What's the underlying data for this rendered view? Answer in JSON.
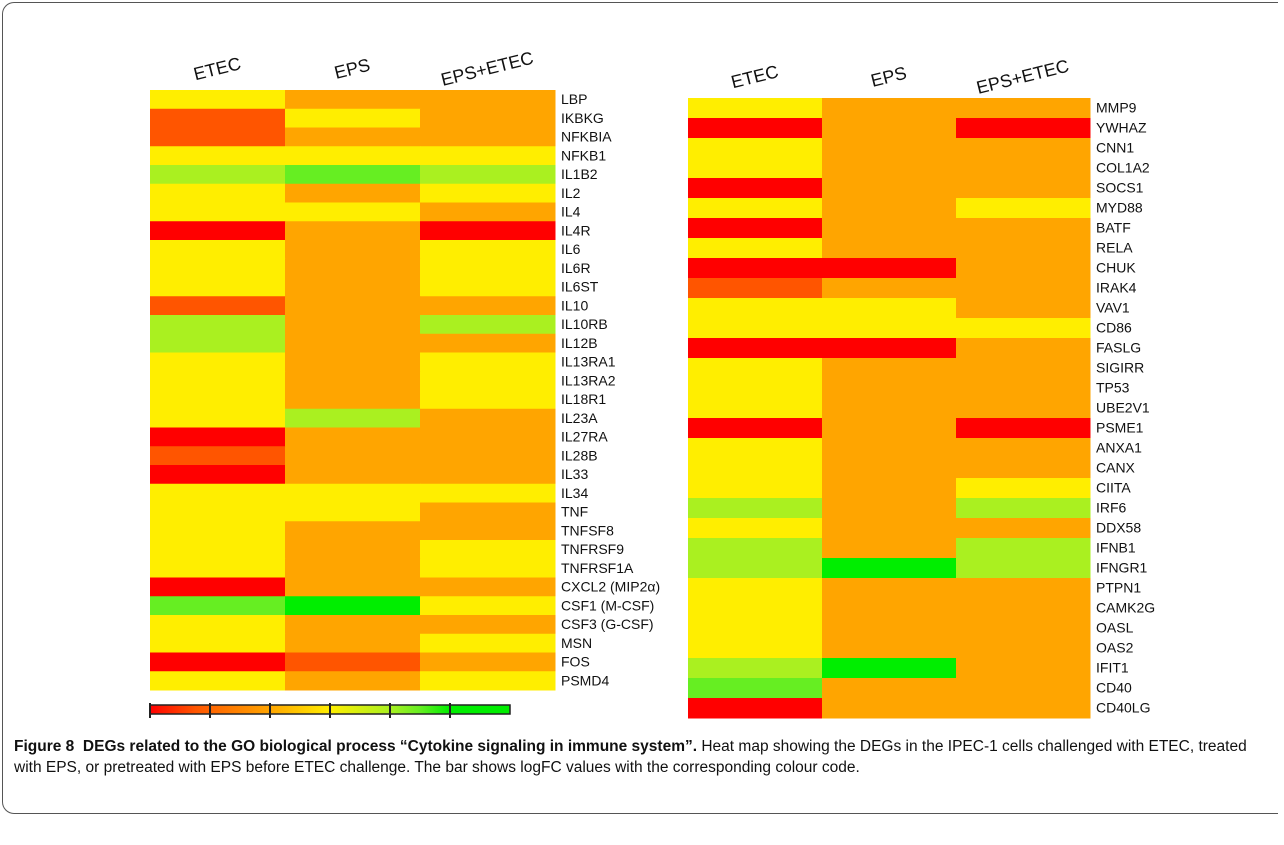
{
  "chart_data": [
    {
      "type": "heatmap",
      "columns": [
        "ETEC",
        "EPS",
        "EPS+ETEC"
      ],
      "rows": [
        "LBP",
        "IKBKG",
        "NFKBIA",
        "NFKB1",
        "IL1B2",
        "IL2",
        "IL4",
        "IL4R",
        "IL6",
        "IL6R",
        "IL6ST",
        "IL10",
        "IL10RB",
        "IL12B",
        "IL13RA1",
        "IL13RA2",
        "IL18R1",
        "IL23A",
        "IL27RA",
        "IL28B",
        "IL33",
        "IL34",
        "TNF",
        "TNFSF8",
        "TNFRSF9",
        "TNFRSF1A",
        "CXCL2 (MIP2α)",
        "CSF1 (M-CSF)",
        "CSF3 (G-CSF)",
        "MSN",
        "FOS",
        "PSMD4"
      ],
      "values": [
        [
          2,
          0,
          0
        ],
        [
          -2.5,
          2,
          0
        ],
        [
          -2.5,
          0,
          0
        ],
        [
          2,
          2,
          2
        ],
        [
          4,
          5,
          4
        ],
        [
          2,
          0,
          2
        ],
        [
          2,
          2,
          0
        ],
        [
          -4,
          0,
          -4
        ],
        [
          2,
          0,
          2
        ],
        [
          2,
          0,
          2
        ],
        [
          2,
          0,
          2
        ],
        [
          -2.5,
          0,
          0
        ],
        [
          4,
          0,
          4
        ],
        [
          4,
          0,
          0
        ],
        [
          2,
          0,
          2
        ],
        [
          2,
          0,
          2
        ],
        [
          2,
          0,
          2
        ],
        [
          2,
          4,
          0
        ],
        [
          -4,
          0,
          0
        ],
        [
          -2.5,
          0,
          0
        ],
        [
          -4,
          0,
          0
        ],
        [
          2,
          2,
          2
        ],
        [
          2,
          2,
          0
        ],
        [
          2,
          0,
          0
        ],
        [
          2,
          0,
          2
        ],
        [
          2,
          0,
          2
        ],
        [
          -4,
          0,
          0
        ],
        [
          5,
          6,
          2
        ],
        [
          2,
          0,
          0
        ],
        [
          2,
          0,
          2
        ],
        [
          -4,
          -2.5,
          0
        ],
        [
          2,
          0,
          2
        ]
      ]
    },
    {
      "type": "heatmap",
      "columns": [
        "ETEC",
        "EPS",
        "EPS+ETEC"
      ],
      "rows": [
        "MMP9",
        "YWHAZ",
        "CNN1",
        "COL1A2",
        "SOCS1",
        "MYD88",
        "BATF",
        "RELA",
        "CHUK",
        "IRAK4",
        "VAV1",
        "CD86",
        "FASLG",
        "SIGIRR",
        "TP53",
        "UBE2V1",
        "PSME1",
        "ANXA1",
        "CANX",
        "CIITA",
        "IRF6",
        "DDX58",
        "IFNB1",
        "IFNGR1",
        "PTPN1",
        "CAMK2G",
        "OASL",
        "OAS2",
        "IFIT1",
        "CD40",
        "CD40LG"
      ],
      "values": [
        [
          2,
          0,
          0
        ],
        [
          -4,
          0,
          -4
        ],
        [
          2,
          0,
          0
        ],
        [
          2,
          0,
          0
        ],
        [
          -4,
          0,
          0
        ],
        [
          2,
          0,
          2
        ],
        [
          -4,
          0,
          0
        ],
        [
          2,
          0,
          0
        ],
        [
          -4,
          -4,
          0
        ],
        [
          -2.5,
          0,
          0
        ],
        [
          2,
          2,
          0
        ],
        [
          2,
          2,
          2
        ],
        [
          -4,
          -4,
          0
        ],
        [
          2,
          0,
          0
        ],
        [
          2,
          0,
          0
        ],
        [
          2,
          0,
          0
        ],
        [
          -4,
          0,
          -4
        ],
        [
          2,
          0,
          0
        ],
        [
          2,
          0,
          0
        ],
        [
          2,
          0,
          2
        ],
        [
          4,
          0,
          4
        ],
        [
          2,
          0,
          0
        ],
        [
          4,
          0,
          4
        ],
        [
          4,
          6,
          4
        ],
        [
          2,
          0,
          0
        ],
        [
          2,
          0,
          0
        ],
        [
          2,
          0,
          0
        ],
        [
          2,
          0,
          0
        ],
        [
          4,
          6,
          0
        ],
        [
          5,
          0,
          0
        ],
        [
          -4,
          0,
          0
        ]
      ]
    }
  ],
  "colorbar": {
    "xlim": [
      -4,
      8
    ],
    "xticks": [
      -4,
      -2,
      0,
      2,
      4,
      6
    ],
    "colorscale": [
      [
        -4,
        "#ff0000"
      ],
      [
        -2.5,
        "#ff5500"
      ],
      [
        0,
        "#ffa500"
      ],
      [
        2,
        "#ffee00"
      ],
      [
        4,
        "#aaf020"
      ],
      [
        5,
        "#66ee22"
      ],
      [
        6,
        "#00ee00"
      ]
    ]
  },
  "caption": {
    "label": "Figure 8",
    "title": "DEGs related to the GO biological process “Cytokine signaling in immune system”.",
    "text": "Heat map showing the DEGs in the IPEC-1 cells challenged with ETEC, treated with EPS, or pretreated with EPS before ETEC challenge. The bar shows logFC values with the corresponding colour code."
  }
}
